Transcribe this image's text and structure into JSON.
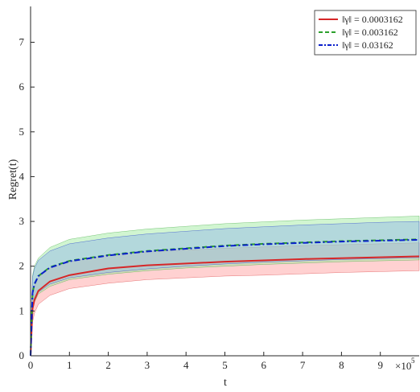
{
  "chart_data": {
    "type": "line",
    "title": "",
    "xlabel": "t",
    "ylabel": "Regret(t)",
    "x_exponent_label": "×10",
    "x_exponent_power": "5",
    "xlim": [
      0,
      10
    ],
    "ylim": [
      0,
      7.8
    ],
    "x_ticks": [
      0,
      1,
      2,
      3,
      4,
      5,
      6,
      7,
      8,
      9
    ],
    "y_ticks": [
      0,
      1,
      2,
      3,
      4,
      5,
      6,
      7
    ],
    "grid": false,
    "legend_position": "top-right",
    "x": [
      0,
      0.05,
      0.1,
      0.2,
      0.5,
      1,
      2,
      3,
      4,
      5,
      6,
      7,
      8,
      9,
      10
    ],
    "series": [
      {
        "name": "‖γ‖ = 0.0003162",
        "color": "#d62728",
        "fill": "#ff9a9a",
        "style": "solid",
        "values": [
          0,
          1.05,
          1.25,
          1.45,
          1.66,
          1.8,
          1.95,
          2.02,
          2.06,
          2.1,
          2.13,
          2.16,
          2.18,
          2.2,
          2.22
        ],
        "lower": [
          0,
          0.75,
          0.95,
          1.15,
          1.35,
          1.5,
          1.62,
          1.7,
          1.74,
          1.78,
          1.8,
          1.83,
          1.86,
          1.88,
          1.9
        ],
        "upper": [
          0,
          1.35,
          1.55,
          1.75,
          1.96,
          2.1,
          2.25,
          2.32,
          2.36,
          2.4,
          2.43,
          2.46,
          2.48,
          2.5,
          2.52
        ]
      },
      {
        "name": "‖γ‖ = 0.003162",
        "color": "#2ca02c",
        "fill": "#9ae89a",
        "style": "dashed",
        "values": [
          0,
          1.4,
          1.6,
          1.78,
          1.98,
          2.12,
          2.25,
          2.34,
          2.4,
          2.46,
          2.5,
          2.53,
          2.56,
          2.58,
          2.6
        ],
        "lower": [
          0,
          1.0,
          1.2,
          1.38,
          1.55,
          1.7,
          1.82,
          1.9,
          1.96,
          2.0,
          2.04,
          2.07,
          2.1,
          2.12,
          2.14
        ],
        "upper": [
          0,
          1.8,
          2.0,
          2.18,
          2.42,
          2.6,
          2.74,
          2.83,
          2.89,
          2.95,
          2.99,
          3.03,
          3.06,
          3.09,
          3.12
        ]
      },
      {
        "name": "‖γ‖ = 0.03162",
        "color": "#0a1fcc",
        "fill": "#8fb6e8",
        "style": "dashdot",
        "values": [
          0,
          1.4,
          1.6,
          1.78,
          1.97,
          2.11,
          2.24,
          2.33,
          2.39,
          2.45,
          2.49,
          2.52,
          2.55,
          2.57,
          2.59
        ],
        "lower": [
          0,
          1.05,
          1.25,
          1.42,
          1.6,
          1.74,
          1.86,
          1.94,
          2.0,
          2.05,
          2.09,
          2.12,
          2.15,
          2.17,
          2.19
        ],
        "upper": [
          0,
          1.75,
          1.95,
          2.13,
          2.34,
          2.5,
          2.63,
          2.72,
          2.78,
          2.84,
          2.88,
          2.92,
          2.95,
          2.98,
          3.0
        ]
      }
    ]
  }
}
